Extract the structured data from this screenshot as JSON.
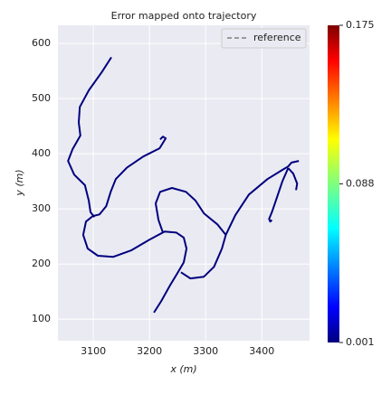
{
  "chart_data": {
    "type": "line",
    "title": "Error mapped onto trajectory",
    "x_label": "x (m)",
    "y_label": "y (m)",
    "x": [
      3208,
      3221,
      3237,
      3250,
      3261,
      3266,
      3261,
      3248,
      3227,
      3200,
      3168,
      3135,
      3108,
      3090,
      3082,
      3087,
      3099,
      3111,
      3123,
      3131,
      3140,
      3160,
      3189,
      3218,
      3229,
      3224,
      3219,
      null,
      3132,
      3115,
      3092,
      3076,
      3074,
      3077,
      3063,
      3055,
      3066,
      3085,
      3092,
      3095,
      3102,
      null,
      3224,
      3216,
      3211,
      3219,
      3240,
      3265,
      3282,
      3297,
      3321,
      3336,
      3329,
      3315,
      3297,
      3273,
      3256,
      null,
      3336,
      3353,
      3377,
      3410,
      3437,
      3447,
      3453,
      3466,
      null,
      3447,
      3456,
      3463,
      3461,
      null,
      3447,
      3437,
      3426,
      3418,
      3413,
      3415,
      3418
    ],
    "series": [
      {
        "name": "reference",
        "color": "#808080",
        "linestyle": "dashed",
        "values": [
          112,
          133,
          162,
          184,
          203,
          228,
          248,
          257,
          259,
          244,
          225,
          213,
          215,
          228,
          253,
          277,
          287,
          290,
          305,
          331,
          354,
          375,
          395,
          410,
          428,
          431,
          426,
          null,
          575,
          548,
          515,
          485,
          457,
          433,
          408,
          387,
          362,
          343,
          315,
          294,
          285,
          null,
          257,
          280,
          310,
          331,
          338,
          331,
          315,
          292,
          272,
          253,
          228,
          195,
          177,
          174,
          185,
          null,
          253,
          289,
          326,
          354,
          371,
          377,
          384,
          387,
          null,
          374,
          364,
          346,
          334,
          null,
          374,
          351,
          318,
          294,
          282,
          277,
          280
        ]
      }
    ],
    "line_color": "#00007f",
    "xlim": [
      3037,
      3485
    ],
    "ylim": [
      61,
      633
    ],
    "xticks": [
      3100,
      3200,
      3300,
      3400
    ],
    "yticks": [
      100,
      200,
      300,
      400,
      500,
      600
    ],
    "grid": true,
    "legend": "upper right",
    "colorbar": {
      "colormap": "jet",
      "lim": [
        0.001,
        0.175
      ],
      "ticks": [
        0.001,
        0.088,
        0.175
      ]
    }
  }
}
